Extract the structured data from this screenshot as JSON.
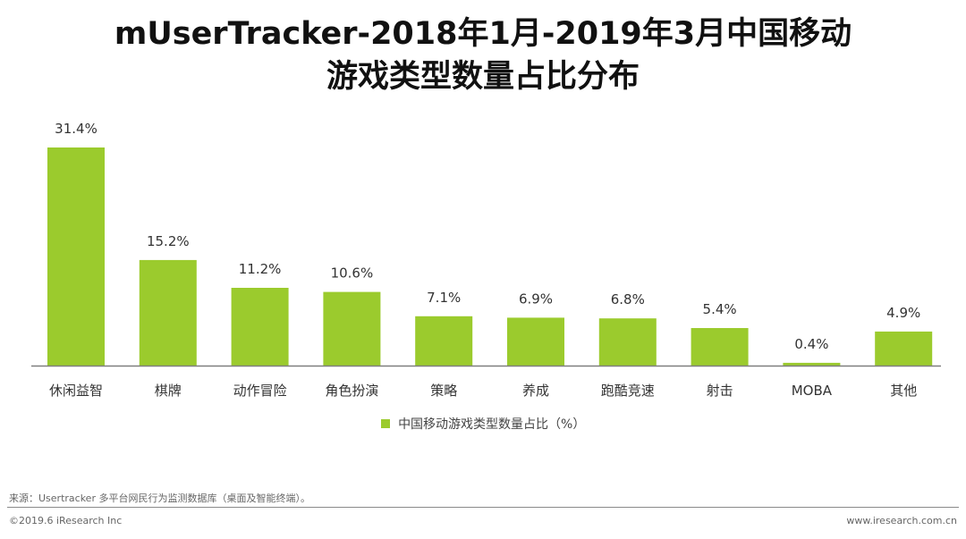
{
  "title_line1": "mUserTracker-2018年1月-2019年3月中国移动",
  "title_line2": "游戏类型数量占比分布",
  "legend_label": "中国移动游戏类型数量占比（%）",
  "source_text": "来源：Usertracker 多平台网民行为监测数据库（桌面及智能终端）。",
  "copyright_text": "©2019.6 iResearch Inc",
  "website_text": "www.iresearch.com.cn",
  "colors": {
    "bar": "#9bcb2d",
    "axis": "#7f7f7f"
  },
  "chart_data": {
    "type": "bar",
    "categories": [
      "休闲益智",
      "棋牌",
      "动作冒险",
      "角色扮演",
      "策略",
      "养成",
      "跑酷竞速",
      "射击",
      "MOBA",
      "其他"
    ],
    "series": [
      {
        "name": "中国移动游戏类型数量占比（%）",
        "values": [
          31.4,
          15.2,
          11.2,
          10.6,
          7.1,
          6.9,
          6.8,
          5.4,
          0.4,
          4.9
        ]
      }
    ],
    "data_labels": [
      "31.4%",
      "15.2%",
      "11.2%",
      "10.6%",
      "7.1%",
      "6.9%",
      "6.8%",
      "5.4%",
      "0.4%",
      "4.9%"
    ],
    "ylim": [
      0,
      31.4
    ],
    "grid": false,
    "legend_position": "bottom"
  }
}
